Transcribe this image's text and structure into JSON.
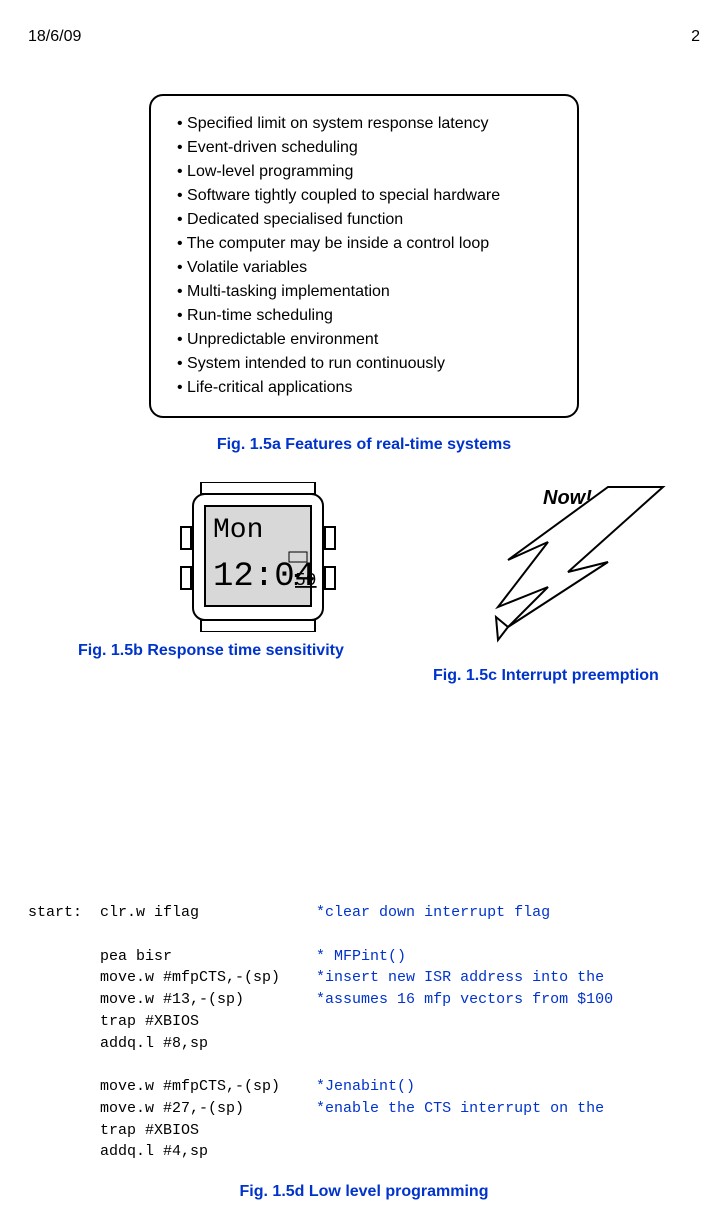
{
  "header": {
    "date": "18/6/09",
    "page": "2"
  },
  "features": [
    "Specified limit on system response latency",
    "Event-driven scheduling",
    "Low-level programming",
    "Software tightly coupled to special hardware",
    "Dedicated specialised function",
    "The computer may be inside a control loop",
    "Volatile variables",
    "Multi-tasking implementation",
    "Run-time scheduling",
    "Unpredictable environment",
    "System intended to run continuously",
    "Life-critical applications"
  ],
  "captions": {
    "a": "Fig. 1.5a  Features of real-time systems",
    "b": "Fig. 1.5b  Response time sensitivity",
    "c": "Fig. 1.5c  Interrupt preemption",
    "d": "Fig. 1.5d  Low level programming"
  },
  "watch": {
    "day": "Mon",
    "time_h": "12",
    "time_m": "04",
    "time_s": "59",
    "face_bg": "#d8d8d8",
    "body_bg": "#ffffff",
    "stroke": "#000000"
  },
  "now_label": "Now!",
  "colors": {
    "caption": "#0033cc",
    "code_comment": "#0033cc",
    "text": "#000000",
    "background": "#ffffff"
  },
  "code": {
    "lines": [
      {
        "label": "start:",
        "op": "clr.w iflag",
        "comment": "*clear down interrupt flag"
      },
      {
        "label": "",
        "op": "",
        "comment": ""
      },
      {
        "label": "",
        "op": "pea bisr",
        "comment": "* MFPint()"
      },
      {
        "label": "",
        "op": "move.w #mfpCTS,-(sp)",
        "comment": "*insert new ISR address into the "
      },
      {
        "label": "",
        "op": "move.w #13,-(sp)",
        "comment": "*assumes 16 mfp vectors from $100"
      },
      {
        "label": "",
        "op": "trap #XBIOS",
        "comment": ""
      },
      {
        "label": "",
        "op": "addq.l #8,sp",
        "comment": ""
      },
      {
        "label": "",
        "op": "",
        "comment": ""
      },
      {
        "label": "",
        "op": "move.w #mfpCTS,-(sp)",
        "comment": "*Jenabint()"
      },
      {
        "label": "",
        "op": "move.w #27,-(sp)",
        "comment": "*enable the CTS interrupt on the "
      },
      {
        "label": "",
        "op": "trap #XBIOS",
        "comment": ""
      },
      {
        "label": "",
        "op": "addq.l #4,sp",
        "comment": ""
      }
    ],
    "label_col": 8,
    "op_col": 24,
    "comment_col": 25
  }
}
